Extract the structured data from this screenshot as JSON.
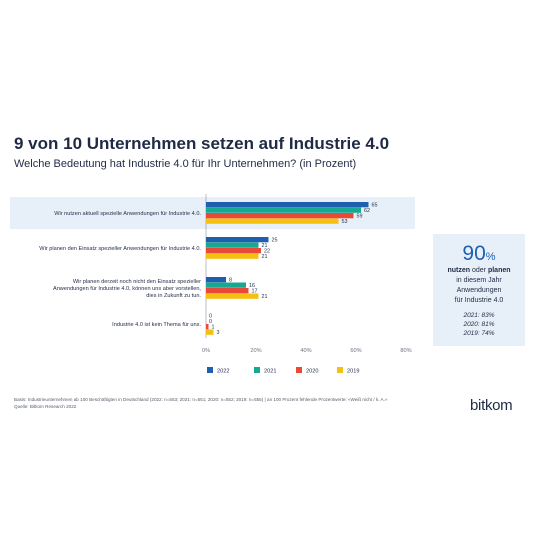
{
  "page": {
    "title": "9 von 10 Unternehmen setzen auf Industrie 4.0",
    "subtitle": "Welche Bedeutung hat Industrie 4.0 für Ihr Unternehmen? (in Prozent)"
  },
  "callout": {
    "big": "90",
    "pct": "%",
    "line1_a": "nutzen",
    "line1_b": " oder ",
    "line1_c": "planen",
    "line2": "in diesem Jahr",
    "line3": "Anwendungen",
    "line4": "für Industrie 4.0",
    "hist": [
      "2021: 83%",
      "2020: 81%",
      "2019: 74%"
    ]
  },
  "footnote": {
    "line1": "Basis: Industrieunternehmen ab 100 Beschäftigten in Deutschland (2022: n=553; 2021: n=551; 2020: n=552; 2019: n=555) | an 100 Prozent fehlende Prozentwerte: «Weiß nicht / k. A.»",
    "line2": "Quelle: Bitkom Research 2022"
  },
  "logo": "bitkom",
  "chart_data": {
    "type": "bar",
    "orientation": "horizontal",
    "title": "9 von 10 Unternehmen setzen auf Industrie 4.0",
    "subtitle": "Welche Bedeutung hat Industrie 4.0 für Ihr Unternehmen? (in Prozent)",
    "categories": [
      [
        "Wir nutzen aktuell spezielle Anwendungen für Industrie 4.0."
      ],
      [
        "Wir planen den Einsatz spezieller Anwendungen für Industrie 4.0."
      ],
      [
        "Wir planen derzeit noch nicht den Einsatz spezieller",
        "Anwendungen für Industrie 4.0, können uns aber vorstellen,",
        "dies in Zukunft zu tun."
      ],
      [
        "Industrie 4.0 ist kein Thema für uns."
      ]
    ],
    "series": [
      {
        "name": "2022",
        "color": "#1f5fb0",
        "values": [
          65,
          25,
          8,
          0
        ]
      },
      {
        "name": "2021",
        "color": "#17a891",
        "values": [
          62,
          21,
          16,
          0
        ]
      },
      {
        "name": "2020",
        "color": "#e84a3a",
        "values": [
          59,
          22,
          17,
          1
        ]
      },
      {
        "name": "2019",
        "color": "#f5c012",
        "values": [
          53,
          21,
          21,
          3
        ]
      }
    ],
    "xlim": [
      0,
      80
    ],
    "xticks": [
      "0%",
      "20%",
      "40%",
      "60%",
      "80%"
    ],
    "highlight_category": 0,
    "highlight_color": "#e7f0f8",
    "legend_position": "bottom",
    "grid": false
  }
}
